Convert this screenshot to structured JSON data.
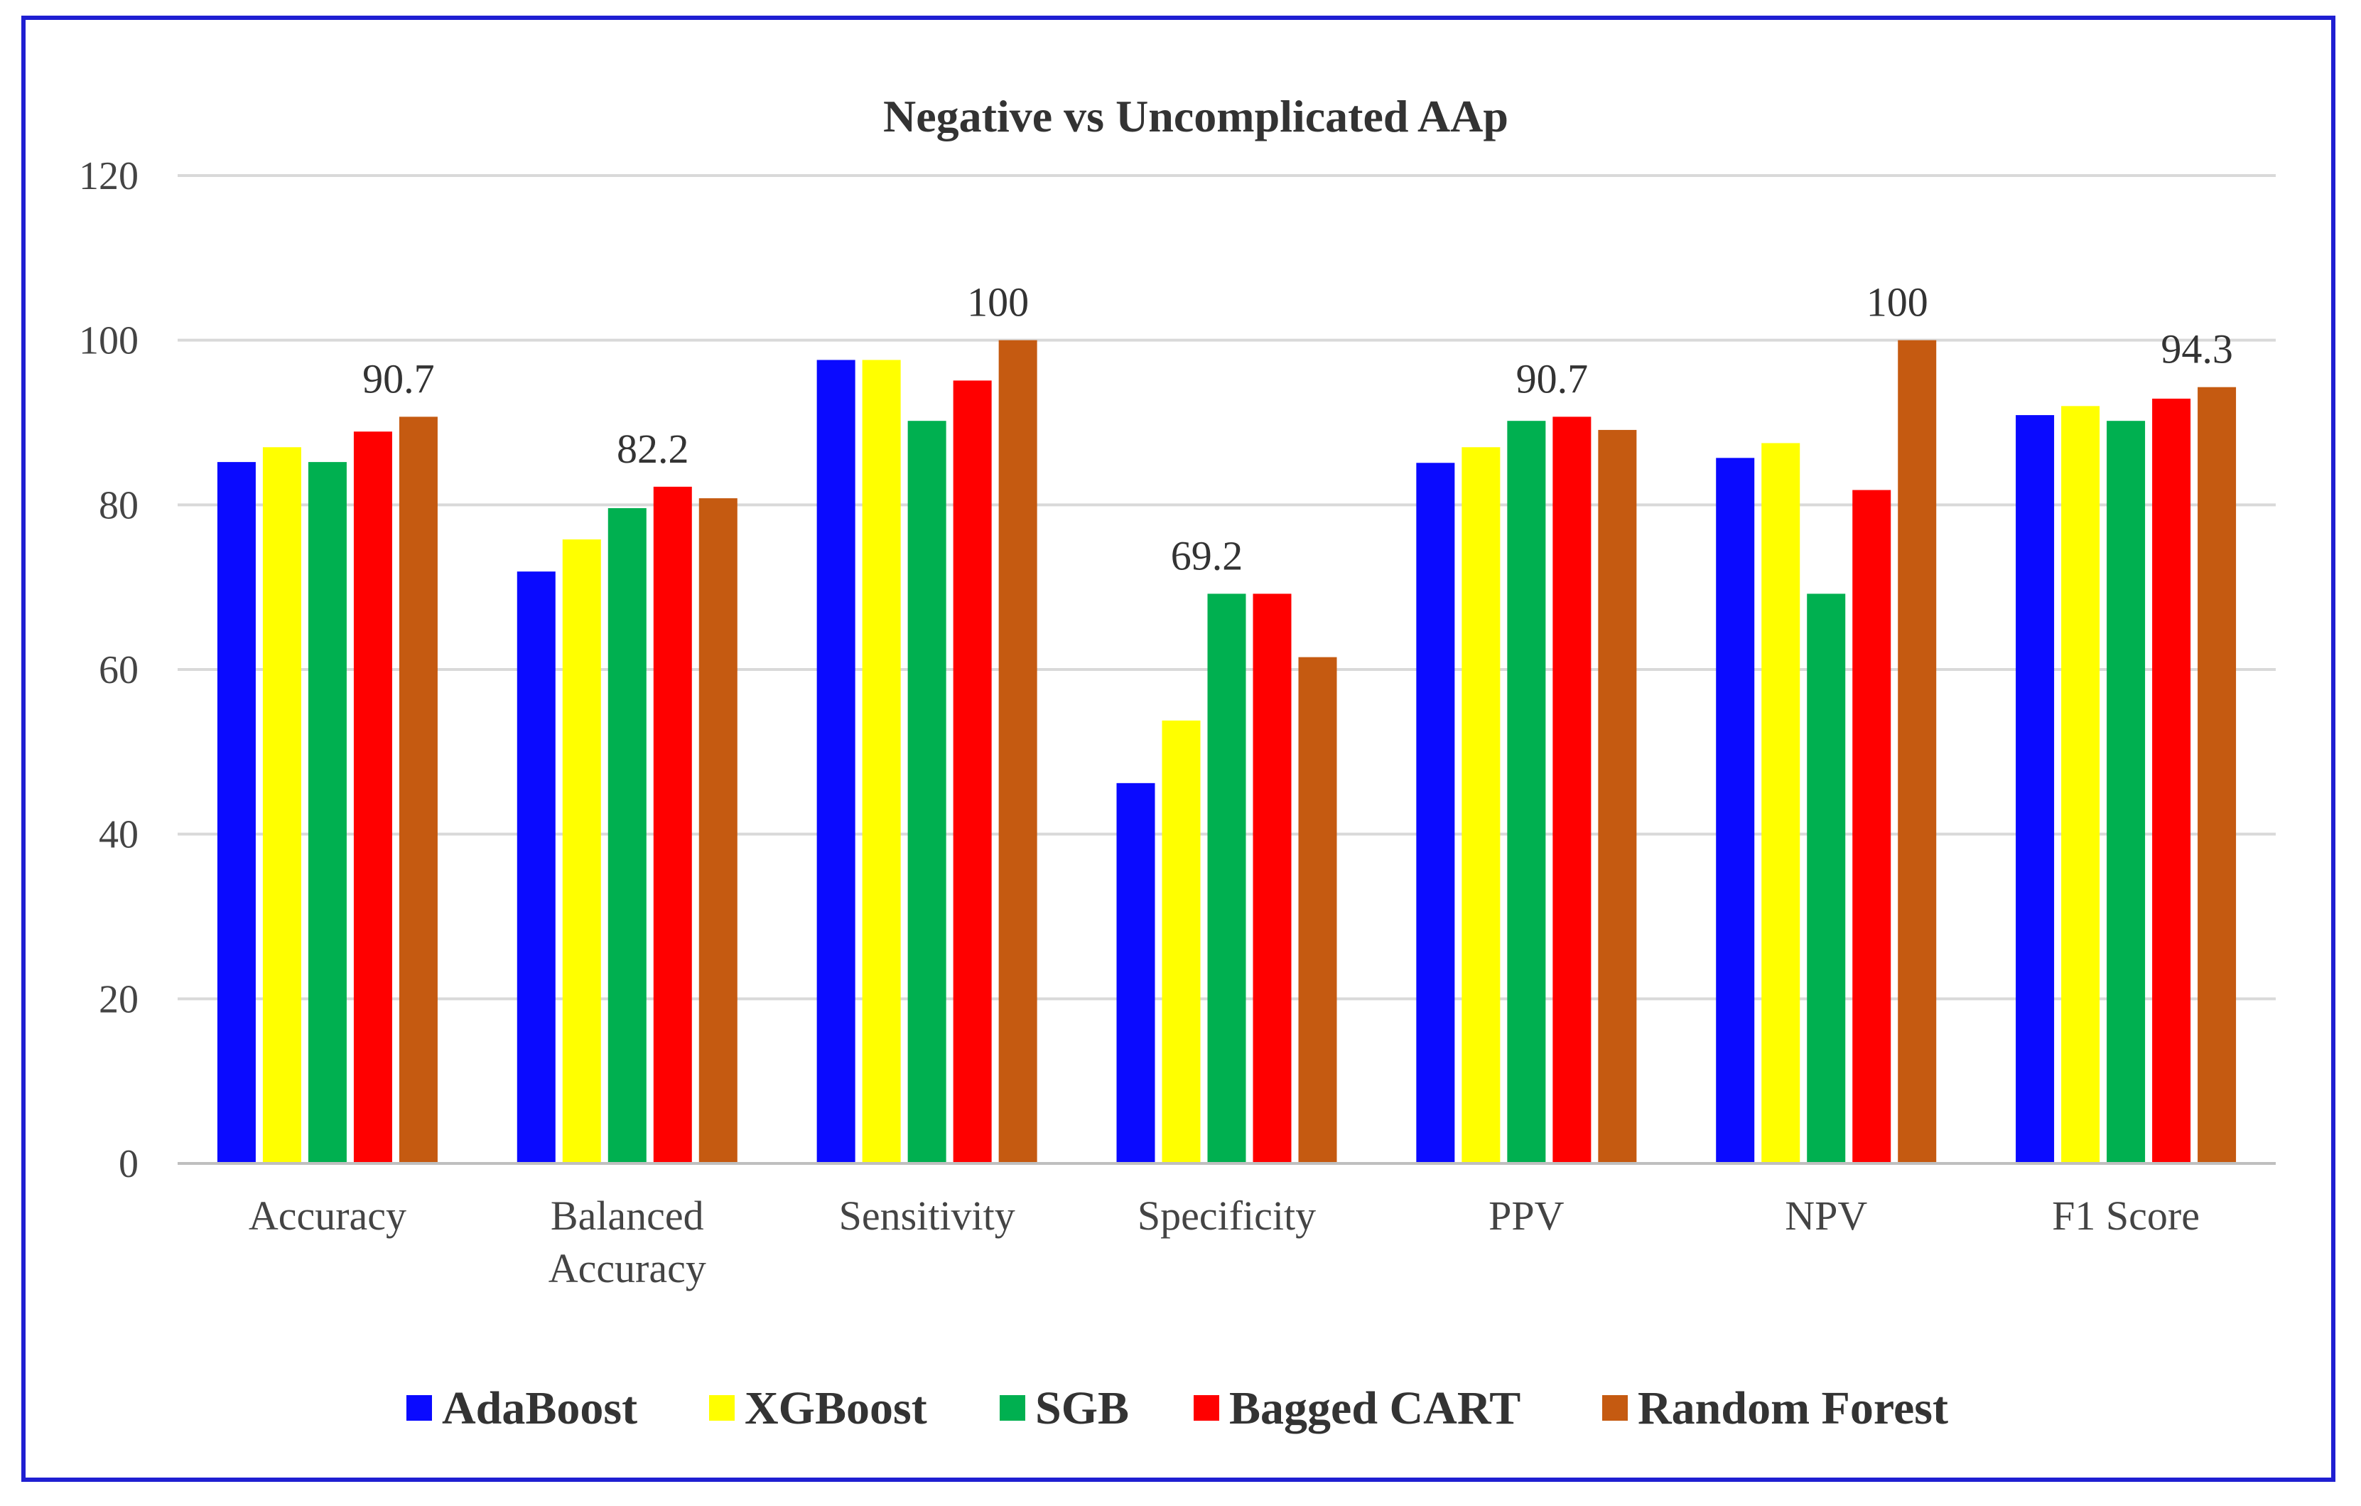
{
  "chart_data": {
    "type": "bar",
    "title": "Negative vs Uncomplicated AAp",
    "xlabel": "",
    "ylabel": "",
    "ylim": [
      0,
      120
    ],
    "yticks": [
      "0",
      "20",
      "40",
      "60",
      "80",
      "100",
      "120"
    ],
    "grid": true,
    "legend_position": "bottom",
    "categories": [
      [
        "Accuracy"
      ],
      [
        "Balanced",
        "Accuracy"
      ],
      [
        "Sensitivity"
      ],
      [
        "Specificity"
      ],
      [
        "PPV"
      ],
      [
        "NPV"
      ],
      [
        "F1 Score"
      ]
    ],
    "series": [
      {
        "name": "AdaBoost",
        "color": "#0a0aff",
        "values": [
          85.2,
          71.9,
          97.6,
          46.2,
          85.1,
          85.7,
          90.9
        ]
      },
      {
        "name": "XGBoost",
        "color": "#ffff00",
        "values": [
          87.0,
          75.8,
          97.6,
          53.8,
          87.0,
          87.5,
          92.0
        ]
      },
      {
        "name": "SGB",
        "color": "#00b050",
        "values": [
          85.2,
          79.6,
          90.2,
          69.2,
          90.2,
          69.2,
          90.2
        ]
      },
      {
        "name": "Bagged CART",
        "color": "#ff0000",
        "values": [
          88.9,
          82.2,
          95.1,
          69.2,
          90.7,
          81.8,
          92.9
        ]
      },
      {
        "name": "Random Forest",
        "color": "#c55a11",
        "values": [
          90.7,
          80.8,
          100,
          61.5,
          89.1,
          100,
          94.3
        ]
      }
    ],
    "data_labels": [
      {
        "category_index": 0,
        "series_index": 4,
        "text": "90.7"
      },
      {
        "category_index": 1,
        "series_index": 3,
        "text": "82.2"
      },
      {
        "category_index": 2,
        "series_index": 4,
        "text": "100"
      },
      {
        "category_index": 3,
        "series_index": 2,
        "text": "69.2"
      },
      {
        "category_index": 4,
        "series_index": 3,
        "text": "90.7"
      },
      {
        "category_index": 5,
        "series_index": 4,
        "text": "100"
      },
      {
        "category_index": 6,
        "series_index": 4,
        "text": "94.3"
      }
    ]
  }
}
